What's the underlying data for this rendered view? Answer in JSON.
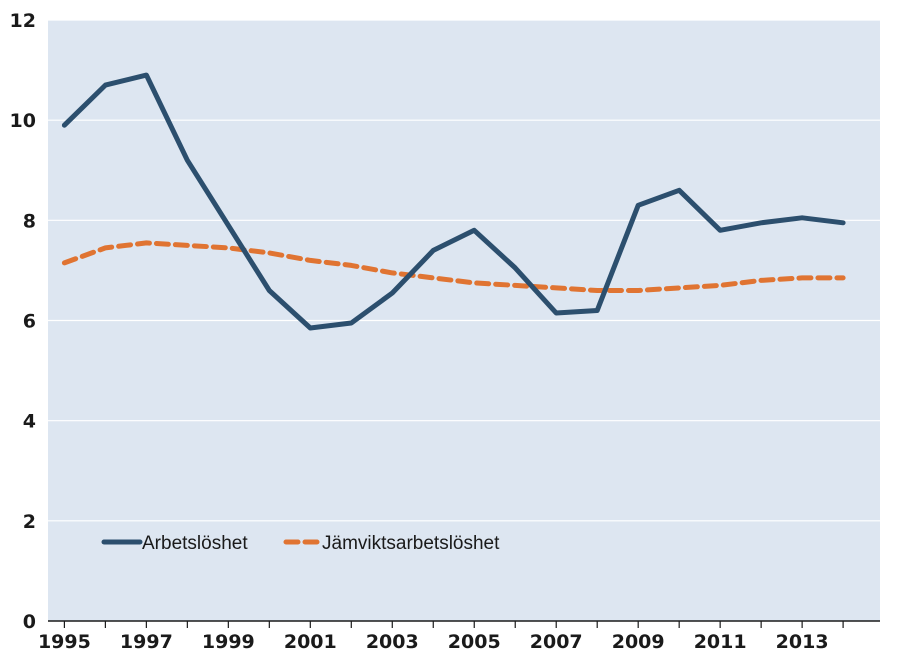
{
  "chart_data": {
    "type": "line",
    "title": "",
    "xlabel": "",
    "ylabel": "",
    "ylim": [
      0,
      12
    ],
    "xlim": [
      1994.6,
      2014.9
    ],
    "yticks": [
      0,
      2,
      4,
      6,
      8,
      10,
      12
    ],
    "xticks": [
      1995,
      1997,
      1999,
      2001,
      2003,
      2005,
      2007,
      2009,
      2011,
      2013
    ],
    "grid": "horizontal",
    "legend": "bottom-left",
    "x": [
      1995,
      1996,
      1997,
      1998,
      1999,
      2000,
      2001,
      2002,
      2003,
      2004,
      2005,
      2006,
      2007,
      2008,
      2009,
      2010,
      2011,
      2012,
      2013,
      2014
    ],
    "series": [
      {
        "name": "Arbetslöshet",
        "color": "#2c4f6e",
        "style": "solid",
        "values": [
          9.9,
          10.7,
          10.9,
          9.2,
          7.9,
          6.6,
          5.85,
          5.95,
          6.55,
          7.4,
          7.8,
          7.05,
          6.15,
          6.2,
          8.3,
          8.6,
          7.8,
          7.95,
          8.05,
          7.95
        ]
      },
      {
        "name": "Jämviktsarbetslöshet",
        "color": "#e07432",
        "style": "dashed",
        "values": [
          7.15,
          7.45,
          7.55,
          7.5,
          7.45,
          7.35,
          7.2,
          7.1,
          6.95,
          6.85,
          6.75,
          6.7,
          6.65,
          6.6,
          6.6,
          6.65,
          6.7,
          6.8,
          6.85,
          6.85
        ]
      }
    ]
  },
  "colors": {
    "plot_background": "#dde6f1",
    "gridline": "#ffffff",
    "axis": "#1a1a1a"
  }
}
